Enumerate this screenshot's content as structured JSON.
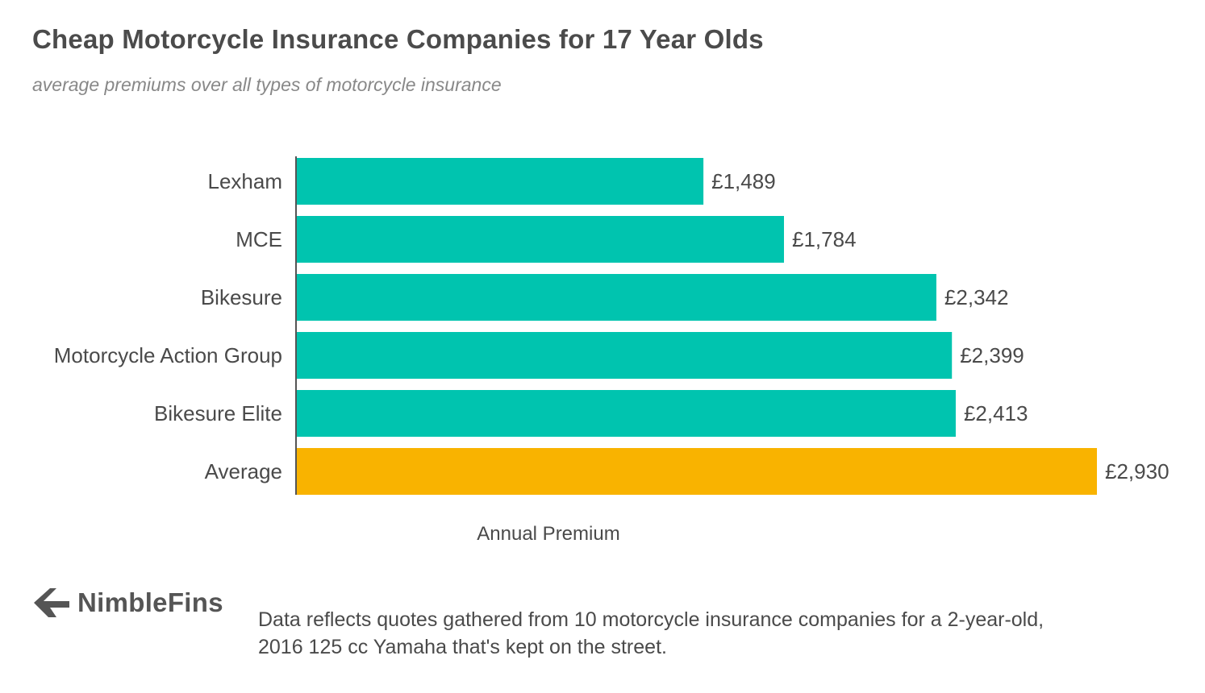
{
  "chart_data": {
    "type": "bar",
    "orientation": "horizontal",
    "title": "Cheap Motorcycle Insurance Companies for 17 Year Olds",
    "subtitle": "average premiums over all types of motorcycle insurance",
    "categories": [
      "Lexham",
      "MCE",
      "Bikesure",
      "Motorcycle Action Group",
      "Bikesure Elite",
      "Average"
    ],
    "values": [
      1489,
      1784,
      2342,
      2399,
      2413,
      2930
    ],
    "value_labels": [
      "£1,489",
      "£1,784",
      "£2,342",
      "£2,399",
      "£2,413",
      "£2,930"
    ],
    "colors": [
      "#00c4af",
      "#00c4af",
      "#00c4af",
      "#00c4af",
      "#00c4af",
      "#f9b300"
    ],
    "xlabel": "Annual Premium",
    "ylabel": "",
    "xlim": [
      0,
      2930
    ],
    "grid": false,
    "legend": "none"
  },
  "branding": {
    "logo_text": "NimbleFins",
    "logo_icon": "nimblefins-arrow-icon"
  },
  "footnote": "Data reflects quotes gathered from 10 motorcycle insurance companies for a 2-year-old, 2016 125 cc Yamaha that's kept on the street."
}
